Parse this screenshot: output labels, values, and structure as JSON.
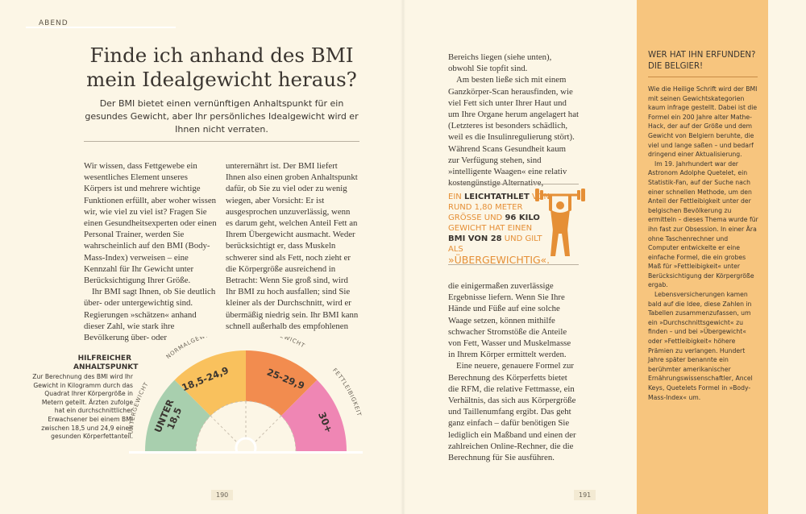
{
  "section": "ABEND",
  "headline": "Finde ich anhand des BMI mein Idealgewicht heraus?",
  "lede": "Der BMI bietet einen vernünftigen Anhaltspunkt für ein gesundes Gewicht, aber Ihr persönliches Idealgewicht wird er Ihnen nicht verraten.",
  "left_col1": [
    "Wir wissen, dass Fettgewebe ein wesentliches Element unseres Körpers ist und mehrere wichtige Funktionen erfüllt, aber woher wissen wir, wie viel zu viel ist? Fragen Sie einen Gesundheitsexperten oder einen Personal Trainer, werden Sie wahrscheinlich auf den BMI (Body-Mass-Index) verweisen – eine Kennzahl für Ihr Gewicht unter Berücksichtigung Ihrer Größe.",
    "Ihr BMI sagt Ihnen, ob Sie deutlich über- oder untergewichtig sind. Regierungen »schätzen« anhand dieser Zahl, wie stark ihre Bevölkerung über- oder"
  ],
  "left_col2": [
    "unterernährt ist. Der BMI liefert Ihnen also einen groben Anhaltspunkt dafür, ob Sie zu viel oder zu wenig wiegen, aber Vorsicht: Er ist ausgesprochen unzuverlässig, wenn es darum geht, welchen Anteil Fett an Ihrem Übergewicht ausmacht. Weder berücksichtigt er, dass Muskeln schwerer sind als Fett, noch zieht er die Körpergröße ausreichend in Betracht: Wenn Sie groß sind, wird Ihr BMI zu hoch ausfallen; sind Sie kleiner als der Durchschnitt, wird er übermäßig niedrig sein. Ihr BMI kann schnell außerhalb des empfohlenen"
  ],
  "sidebar": {
    "title": "HILFREICHER ANHALTSPUNKT",
    "text": "Zur Berechnung des BMI wird Ihr Gewicht in Kilogramm durch das Quadrat Ihrer Körpergröße in Metern geteilt. Ärzten zufolge hat ein durchschnittlicher Erwachsener bei einem BMI zwischen 18,5 und 24,9 einen gesunden Körperfettanteil."
  },
  "gauge": {
    "segments": [
      {
        "label": "UNTERGEWICHT",
        "value": "UNTER 18,5",
        "color": "#a8cfae"
      },
      {
        "label": "NORMALGEWICHT",
        "value": "18,5-24,9",
        "color": "#f9c15d"
      },
      {
        "label": "ÜBERGEWICHT",
        "value": "25-29,9",
        "color": "#f28c4f"
      },
      {
        "label": "FETTLEIBIGKEIT",
        "value": "30+",
        "color": "#ef86b4"
      }
    ]
  },
  "page_numbers": {
    "left": "190",
    "right": "191"
  },
  "right_col1": [
    "Bereichs liegen (siehe unten), obwohl Sie topfit sind.",
    "Am besten ließe sich mit einem Ganzkörper-Scan herausfinden, wie viel Fett sich unter Ihrer Haut und um Ihre Organe herum angelagert hat (Letzteres ist besonders schädlich, weil es die Insulinregulierung stört). Während Scans Gesundheit kaum zur Verfügung stehen, sind »intelligente Waagen« eine relativ kostengünstige Alternative,"
  ],
  "callout": {
    "lead": "EIN",
    "bold1": "LEICHTATHLET",
    "mid1": "VON RUND 1,80 METER GRÖSSE UND",
    "bold2": "96 KILO",
    "mid2": "GEWICHT HAT EINEN",
    "bold3": "BMI VON 28",
    "mid3": "UND GILT ALS",
    "end": "»ÜBERGEWICHTIG«."
  },
  "right_col2": [
    "die einigermaßen zuverlässige Ergebnisse liefern. Wenn Sie Ihre Hände und Füße auf eine solche Waage setzen, können mithilfe schwacher Stromstöße die Anteile von Fett, Wasser und Muskelmasse in Ihrem Körper ermittelt werden.",
    "Eine neuere, genauere Formel zur Berechnung des Körperfetts bietet die RFM, die relative Fettmasse, ein Verhältnis, das sich aus Körpergröße und Taillenumfang ergibt. Das geht ganz einfach – dafür benötigen Sie lediglich ein Maßband und einen der zahlreichen Online-Rechner, die die Berechnung für Sie ausführen."
  ],
  "panel": {
    "title": "WER HAT IHN ERFUNDEN? DIE BELGIER!",
    "paragraphs": [
      "Wie die Heilige Schrift wird der BMI mit seinen Gewichtskategorien kaum infrage gestellt. Dabei ist die Formel ein 200 Jahre alter Mathe-Hack, der auf der Größe und dem Gewicht von Belgiern beruhte, die viel und lange saßen – und bedarf dringend einer Aktualisierung.",
      "Im 19. Jahrhundert war der Astronom Adolphe Quetelet, ein Statistik-Fan, auf der Suche nach einer schnellen Methode, um den Anteil der Fettleibigkeit unter der belgischen Bevölkerung zu ermitteln – dieses Thema wurde für ihn fast zur Obsession. In einer Ära ohne Taschenrechner und Computer entwickelte er eine einfache Formel, die ein grobes Maß für »Fettleibigkeit« unter Berücksichtigung der Körpergröße ergab.",
      "Lebensversicherungen kamen bald auf die Idee, diese Zahlen in Tabellen zusammenzufassen, um ein »Durchschnittsgewicht« zu finden – und bei »Übergewicht« oder »Fettleibigkeit« höhere Prämien zu verlangen. Hundert Jahre später benannte ein berühmter amerikanischer Ernährungswissenschaftler, Ancel Keys, Quetelets Formel in »Body-Mass-Index« um."
    ]
  }
}
